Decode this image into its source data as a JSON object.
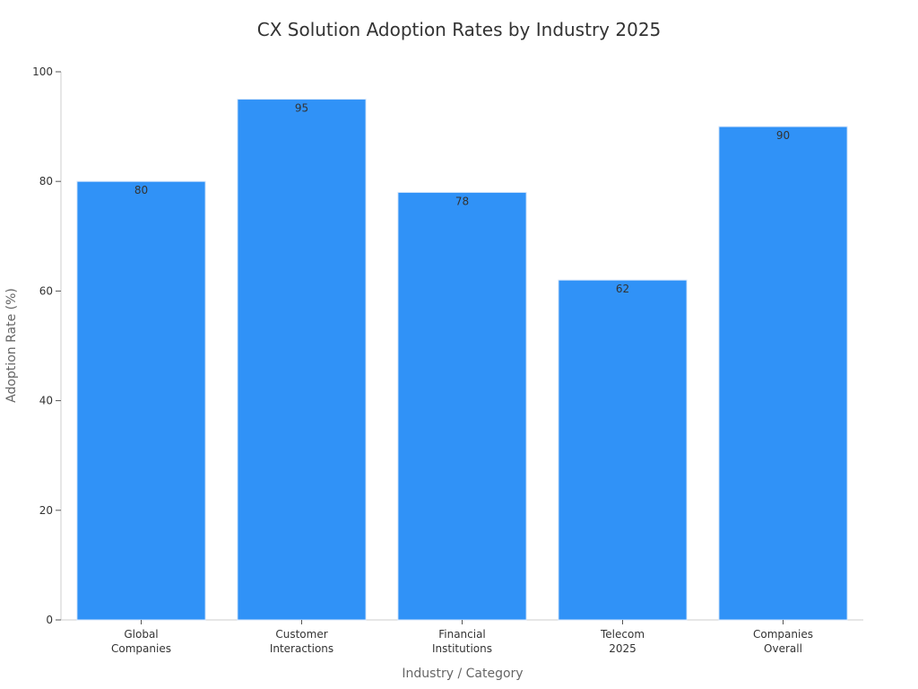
{
  "chart_data": {
    "type": "bar",
    "title": "CX Solution Adoption Rates by Industry 2025",
    "xlabel": "Industry / Category",
    "ylabel": "Adoption Rate (%)",
    "ylim": [
      0,
      100
    ],
    "yticks": [
      0,
      20,
      40,
      60,
      80,
      100
    ],
    "categories": [
      [
        "Global",
        "Companies"
      ],
      [
        "Customer",
        "Interactions"
      ],
      [
        "Financial",
        "Institutions"
      ],
      [
        "Telecom",
        "2025"
      ],
      [
        "Companies",
        "Overall"
      ]
    ],
    "values": [
      80,
      95,
      78,
      62,
      90
    ],
    "bar_color": "#3092f7",
    "grid": false,
    "legend": "none"
  }
}
